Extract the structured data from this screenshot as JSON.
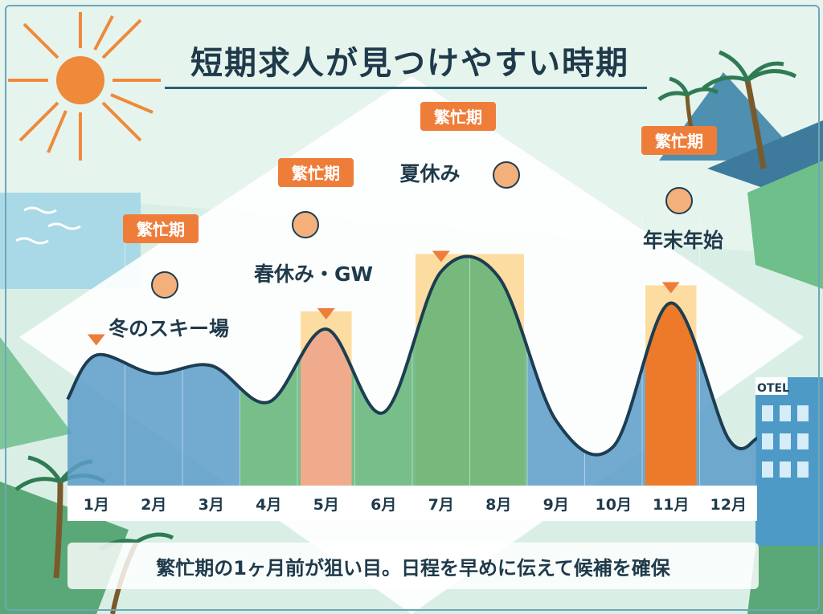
{
  "title": "短期求人が見つけやすい時期",
  "footer": "繁忙期の1ヶ月前が狙い目。日程を早めに伝えて候補を確保",
  "hotel_sign": "OTEL",
  "colors": {
    "winter_fill": "#5b9cc8",
    "summer_fill": "#5fb377",
    "spring_peak": "#f0ab8d",
    "spring_bar": "#e98a4c",
    "yearend_peak": "#ec7a2a",
    "highlight": "#fcdca0",
    "tag_bg": "#ee7d3a",
    "curve": "#1d3d52",
    "sun": "#ee8a3a"
  },
  "chart_data": {
    "type": "area",
    "categories": [
      "1月",
      "2月",
      "3月",
      "4月",
      "5月",
      "6月",
      "7月",
      "8月",
      "9月",
      "10月",
      "11月",
      "12月"
    ],
    "values": [
      50,
      43,
      46,
      32,
      60,
      28,
      82,
      80,
      25,
      15,
      70,
      18
    ],
    "ylim": [
      0,
      100
    ],
    "peaks": [
      {
        "tag": "繁忙期",
        "label": "冬のスキー場",
        "month": "1月",
        "icon": "gondola-icon"
      },
      {
        "tag": "繁忙期",
        "label": "春休み・GW",
        "month": "5月",
        "icon": "cherry-blossom-handshake-icon"
      },
      {
        "tag": "繁忙期",
        "label": "夏休み",
        "month": "7月",
        "icon": "sun-beach-umbrella-icon"
      },
      {
        "tag": "繁忙期",
        "label": "年末年始",
        "month": "11月",
        "icon": "bell-tree-icon"
      }
    ]
  }
}
